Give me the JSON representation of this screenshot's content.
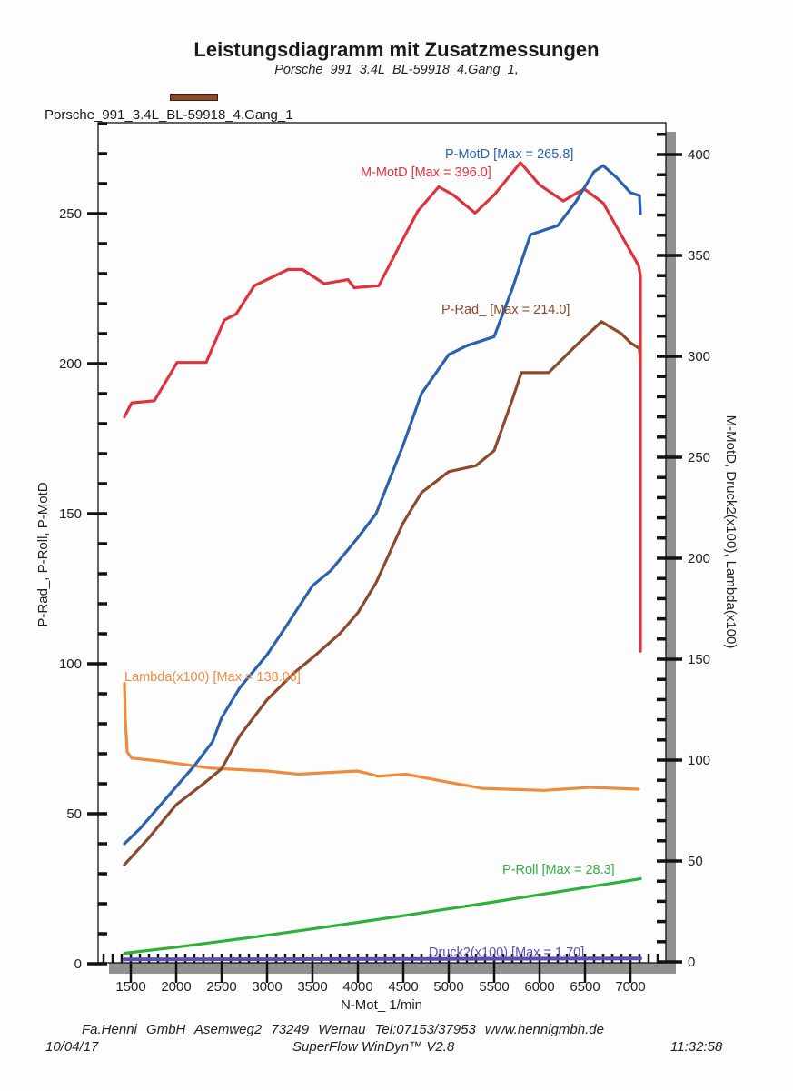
{
  "header": {
    "title": "Leistungsdiagramm mit Zusatzmessungen",
    "subtitle": "Porsche_991_3.4L_BL-59918_4.Gang_1,",
    "legend_label": "Porsche_991_3.4L_BL-59918_4.Gang_1",
    "legend_color": "#8b4a2b"
  },
  "footer": {
    "company": "Fa.Henni GmbH   Asemweg2   73249 Wernau   Tel:07153/37953   www.hennigmbh.de",
    "date": "10/04/17",
    "software": "SuperFlow WinDyn™ V2.8",
    "time": "11:32:58"
  },
  "chart_data": {
    "type": "line",
    "title": "Leistungsdiagramm mit Zusatzmessungen",
    "subtitle": "Porsche_991_3.4L_BL-59918_4.Gang_1,",
    "xlabel": "N-Mot_ 1/min",
    "ylabel_left": "P-Rad_, P-Roll, P-MotD",
    "ylabel_right": "M-MotD, Druck2(x100), Lambda(x100)",
    "xlim": [
      1140,
      7500
    ],
    "ylim_left": [
      0,
      280
    ],
    "ylim_right": [
      0,
      410
    ],
    "x_ticks": [
      "1500",
      "2000",
      "2500",
      "3000",
      "3500",
      "4000",
      "4500",
      "5000",
      "5500",
      "6000",
      "6500",
      "7000"
    ],
    "y_left_ticks": [
      "0",
      "50",
      "100",
      "150",
      "200",
      "250"
    ],
    "y_right_ticks": [
      "0",
      "50",
      "100",
      "150",
      "200",
      "250",
      "300",
      "350",
      "400"
    ],
    "grid": false,
    "legend": "top-left",
    "series": [
      {
        "name": "P-MotD",
        "label": "P-MotD [Max = 265.8]",
        "axis": "left",
        "color": "#2a62ad",
        "x": [
          1430,
          1600,
          1800,
          2000,
          2200,
          2400,
          2500,
          2700,
          3000,
          3200,
          3500,
          3700,
          4000,
          4200,
          4500,
          4700,
          5000,
          5200,
          5500,
          5700,
          5900,
          6000,
          6200,
          6400,
          6600,
          6700,
          6850,
          7000,
          7100,
          7110
        ],
        "y": [
          40,
          45,
          52,
          59,
          66,
          74,
          82,
          92,
          103,
          112,
          126,
          131,
          142,
          150,
          173,
          190,
          203,
          206,
          209,
          225,
          243,
          244,
          246,
          254,
          264,
          266,
          262,
          257,
          256,
          250
        ]
      },
      {
        "name": "M-MotD",
        "label": "M-MotD [Max = 396.0]",
        "axis": "right",
        "color": "#e0323c",
        "x": [
          1430,
          1510,
          1760,
          2010,
          2330,
          2530,
          2660,
          2860,
          3230,
          3390,
          3630,
          3890,
          3960,
          4230,
          4460,
          4660,
          4890,
          5050,
          5290,
          5500,
          5790,
          6000,
          6260,
          6490,
          6700,
          6900,
          7090,
          7110,
          7110
        ],
        "y": [
          270,
          277,
          278,
          297,
          297,
          318,
          321,
          335,
          343,
          343,
          336,
          338,
          334,
          335,
          355,
          372,
          384,
          380,
          371,
          380,
          396,
          385,
          377,
          383,
          376,
          360,
          345,
          340,
          154
        ]
      },
      {
        "name": "P-Rad_",
        "label": "P-Rad_ [Max = 214.0]",
        "axis": "left",
        "color": "#8b4a2b",
        "x": [
          1430,
          1700,
          2000,
          2300,
          2500,
          2700,
          3000,
          3300,
          3500,
          3800,
          4000,
          4200,
          4500,
          4700,
          5000,
          5300,
          5500,
          5700,
          5800,
          6000,
          6100,
          6400,
          6680,
          6900,
          7000,
          7100,
          7110
        ],
        "y": [
          33,
          42,
          53,
          60,
          65,
          76,
          88,
          97,
          102,
          110,
          117,
          127,
          147,
          157,
          164,
          166,
          171,
          188,
          197,
          197,
          197,
          206,
          214,
          210,
          207,
          205,
          200
        ]
      },
      {
        "name": "P-Roll",
        "label": "P-Roll [Max = 28.3]",
        "axis": "left",
        "color": "#2fb03a",
        "x": [
          1430,
          2000,
          2500,
          3000,
          3500,
          4000,
          4500,
          5000,
          5500,
          6000,
          6500,
          7000,
          7110
        ],
        "y": [
          3.5,
          5.5,
          7.5,
          9.5,
          11.6,
          13.8,
          16.0,
          18.3,
          20.6,
          23.0,
          25.4,
          27.8,
          28.3
        ]
      },
      {
        "name": "Lambda(x100)",
        "label": "Lambda(x100) [Max = 138.06]",
        "axis": "right",
        "color": "#f08a3c",
        "x": [
          1430,
          1440,
          1460,
          1510,
          1820,
          2390,
          3000,
          3340,
          3990,
          4100,
          4220,
          4530,
          5000,
          5370,
          6050,
          6550,
          7090
        ],
        "y": [
          138,
          120,
          104,
          101,
          99.5,
          96,
          94.6,
          93,
          94.6,
          93.5,
          92,
          93,
          89,
          86,
          85,
          86.5,
          85.6
        ]
      },
      {
        "name": "Druck2(x100)",
        "label": "Druck2(x100) [Max = 1.70]",
        "axis": "right",
        "color": "#5a4fb5",
        "x": [
          1430,
          3000,
          5000,
          7110
        ],
        "y": [
          1.2,
          1.3,
          1.5,
          1.7
        ]
      }
    ]
  }
}
